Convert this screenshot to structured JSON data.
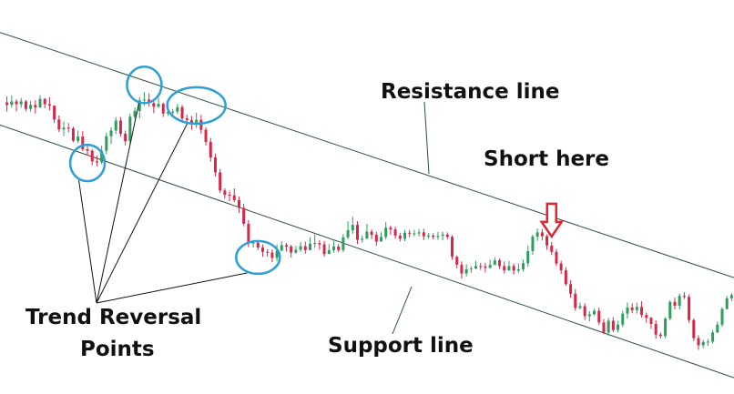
{
  "chart_data": {
    "type": "candlestick",
    "title": "",
    "xlabel": "",
    "ylabel": "",
    "ylim": [
      0,
      100
    ],
    "colors": {
      "up": "#2e9e5b",
      "down": "#d6274a",
      "channel": "#2f4f3f",
      "marker": "#2b9fd8",
      "arrow": "#e0262e"
    },
    "candles": [
      [
        80.1,
        79.4,
        81.8,
        77.5
      ],
      [
        79.4,
        80.4,
        82.1,
        78.7
      ],
      [
        80.4,
        79.6,
        81.0,
        77.6
      ],
      [
        79.6,
        80.4,
        81.4,
        78.6
      ],
      [
        80.4,
        78.3,
        80.8,
        77.6
      ],
      [
        78.3,
        79.4,
        80.5,
        77.5
      ],
      [
        79.4,
        78.7,
        80.7,
        77.0
      ],
      [
        78.7,
        81.1,
        82.1,
        78.6
      ],
      [
        81.1,
        79.6,
        81.3,
        78.5
      ],
      [
        79.6,
        79.2,
        81.6,
        77.9
      ],
      [
        79.2,
        75.3,
        79.2,
        74.3
      ],
      [
        75.3,
        72.5,
        76.4,
        71.8
      ],
      [
        72.5,
        73.0,
        74.7,
        70.6
      ],
      [
        73.0,
        72.8,
        74.3,
        71.7
      ],
      [
        72.8,
        69.3,
        73.3,
        68.9
      ],
      [
        69.3,
        70.5,
        72.2,
        68.6
      ],
      [
        70.5,
        66.9,
        72.0,
        66.4
      ],
      [
        66.9,
        66.5,
        67.9,
        65.1
      ],
      [
        66.5,
        63.5,
        66.9,
        62.4
      ],
      [
        63.5,
        63.2,
        65.2,
        62.1
      ],
      [
        63.2,
        66.5,
        67.9,
        62.7
      ],
      [
        66.5,
        70.6,
        71.6,
        65.5
      ],
      [
        70.6,
        72.2,
        73.1,
        68.4
      ],
      [
        72.2,
        75.0,
        76.0,
        71.2
      ],
      [
        75.0,
        71.3,
        76.0,
        70.5
      ],
      [
        71.3,
        69.2,
        72.2,
        68.0
      ],
      [
        69.2,
        76.1,
        76.9,
        68.2
      ],
      [
        76.1,
        77.7,
        78.7,
        75.5
      ],
      [
        77.7,
        80.7,
        81.6,
        75.6
      ],
      [
        80.7,
        80.9,
        83.0,
        79.2
      ],
      [
        80.9,
        79.9,
        82.7,
        78.9
      ],
      [
        79.9,
        78.9,
        80.4,
        77.1
      ],
      [
        78.9,
        79.7,
        81.4,
        78.6
      ],
      [
        79.7,
        77.0,
        80.1,
        76.0
      ],
      [
        77.0,
        77.4,
        78.7,
        76.4
      ],
      [
        77.4,
        77.5,
        78.3,
        76.2
      ],
      [
        77.5,
        78.8,
        79.7,
        76.8
      ],
      [
        78.8,
        75.6,
        79.4,
        74.6
      ],
      [
        75.6,
        75.1,
        76.7,
        74.0
      ],
      [
        75.1,
        74.0,
        76.3,
        72.4
      ],
      [
        74.0,
        75.2,
        77.2,
        72.9
      ],
      [
        75.2,
        72.4,
        76.6,
        71.3
      ],
      [
        72.4,
        69.0,
        73.1,
        68.0
      ],
      [
        69.0,
        64.6,
        70.1,
        63.4
      ],
      [
        64.6,
        60.4,
        65.7,
        59.3
      ],
      [
        60.4,
        55.3,
        61.4,
        54.6
      ],
      [
        55.3,
        54.1,
        55.9,
        53.0
      ],
      [
        54.1,
        53.9,
        55.2,
        52.3
      ],
      [
        53.9,
        52.6,
        55.9,
        52.0
      ],
      [
        52.6,
        50.4,
        53.6,
        49.0
      ],
      [
        50.4,
        45.9,
        51.6,
        45.2
      ],
      [
        45.9,
        40.5,
        47.0,
        39.3
      ],
      [
        40.5,
        40.6,
        41.4,
        39.2
      ],
      [
        40.6,
        39.2,
        41.2,
        38.5
      ],
      [
        39.2,
        38.0,
        40.1,
        36.6
      ],
      [
        38.0,
        37.8,
        38.8,
        36.6
      ],
      [
        37.8,
        36.3,
        38.7,
        35.1
      ],
      [
        36.3,
        38.3,
        40.1,
        35.4
      ],
      [
        38.3,
        39.9,
        41.0,
        38.5
      ],
      [
        39.9,
        39.5,
        40.5,
        38.1
      ],
      [
        39.5,
        37.8,
        40.0,
        36.4
      ],
      [
        37.8,
        38.6,
        39.7,
        37.5
      ],
      [
        38.6,
        39.6,
        40.8,
        38.0
      ],
      [
        39.6,
        38.5,
        40.9,
        37.5
      ],
      [
        38.5,
        40.3,
        42.1,
        39.2
      ],
      [
        40.3,
        40.5,
        42.9,
        39.1
      ],
      [
        40.5,
        40.1,
        41.3,
        38.6
      ],
      [
        40.1,
        37.4,
        41.1,
        36.6
      ],
      [
        37.4,
        38.5,
        40.2,
        37.7
      ],
      [
        38.5,
        39.5,
        41.1,
        37.8
      ],
      [
        39.5,
        38.5,
        40.2,
        37.9
      ],
      [
        38.5,
        42.1,
        43.0,
        37.9
      ],
      [
        42.1,
        44.1,
        46.6,
        41.5
      ],
      [
        44.1,
        45.6,
        47.9,
        43.1
      ],
      [
        45.6,
        41.4,
        46.6,
        40.2
      ],
      [
        41.4,
        41.7,
        42.6,
        40.6
      ],
      [
        41.7,
        43.7,
        45.9,
        41.9
      ],
      [
        43.7,
        42.8,
        44.3,
        41.6
      ],
      [
        42.8,
        40.9,
        43.7,
        39.7
      ],
      [
        40.9,
        42.2,
        43.5,
        41.4
      ],
      [
        42.2,
        44.8,
        46.4,
        41.5
      ],
      [
        44.8,
        44.3,
        45.4,
        42.8
      ],
      [
        44.3,
        42.6,
        45.1,
        41.7
      ],
      [
        42.6,
        41.7,
        43.4,
        40.9
      ],
      [
        41.7,
        43.4,
        44.2,
        41.0
      ],
      [
        43.4,
        43.2,
        44.2,
        42.1
      ],
      [
        43.2,
        43.2,
        44.2,
        42.4
      ],
      [
        43.2,
        43.5,
        44.4,
        42.3
      ],
      [
        43.5,
        42.4,
        44.5,
        41.3
      ],
      [
        42.4,
        42.6,
        43.3,
        41.7
      ],
      [
        42.6,
        42.2,
        43.2,
        41.5
      ],
      [
        42.2,
        42.5,
        43.6,
        41.4
      ],
      [
        42.5,
        42.9,
        43.7,
        41.3
      ],
      [
        42.9,
        42.2,
        43.5,
        41.5
      ],
      [
        42.2,
        36.6,
        42.7,
        35.8
      ],
      [
        36.6,
        34.4,
        37.0,
        33.3
      ],
      [
        34.4,
        31.9,
        35.3,
        30.5
      ],
      [
        31.9,
        33.1,
        34.5,
        31.1
      ],
      [
        33.1,
        33.3,
        34.0,
        32.1
      ],
      [
        33.3,
        34.0,
        35.5,
        33.1
      ],
      [
        34.0,
        33.9,
        34.9,
        32.9
      ],
      [
        33.9,
        33.5,
        34.9,
        32.2
      ],
      [
        33.5,
        34.3,
        35.8,
        33.3
      ],
      [
        34.3,
        35.6,
        36.5,
        34.6
      ],
      [
        35.6,
        34.0,
        36.1,
        33.2
      ],
      [
        34.0,
        32.8,
        35.3,
        31.9
      ],
      [
        32.8,
        34.0,
        35.4,
        32.7
      ],
      [
        34.0,
        32.7,
        34.7,
        31.6
      ],
      [
        32.7,
        33.1,
        34.8,
        32.0
      ],
      [
        33.1,
        34.8,
        35.8,
        32.4
      ],
      [
        34.8,
        38.2,
        39.8,
        33.8
      ],
      [
        38.2,
        42.3,
        42.8,
        37.2
      ],
      [
        42.3,
        43.5,
        44.6,
        41.1
      ],
      [
        43.5,
        42.4,
        44.4,
        41.2
      ],
      [
        42.4,
        39.8,
        42.9,
        38.6
      ],
      [
        39.8,
        38.0,
        40.8,
        37.1
      ],
      [
        38.0,
        34.7,
        38.8,
        34.0
      ],
      [
        34.7,
        32.8,
        35.5,
        31.8
      ],
      [
        32.8,
        28.9,
        33.7,
        28.4
      ],
      [
        28.9,
        26.2,
        30.0,
        25.1
      ],
      [
        26.2,
        22.2,
        27.5,
        21.4
      ],
      [
        22.2,
        22.7,
        23.7,
        21.8
      ],
      [
        22.7,
        19.9,
        23.5,
        18.8
      ],
      [
        19.9,
        20.4,
        21.3,
        18.4
      ],
      [
        20.4,
        21.4,
        22.0,
        20.1
      ],
      [
        21.4,
        18.1,
        22.3,
        17.4
      ],
      [
        18.1,
        15.3,
        19.1,
        14.8
      ],
      [
        15.3,
        18.6,
        19.4,
        14.4
      ],
      [
        18.6,
        16.0,
        19.6,
        15.4
      ],
      [
        16.0,
        17.5,
        18.6,
        15.3
      ],
      [
        17.5,
        20.6,
        21.4,
        16.8
      ],
      [
        20.6,
        22.3,
        23.7,
        19.2
      ],
      [
        22.3,
        21.6,
        23.5,
        20.7
      ],
      [
        21.6,
        22.5,
        23.7,
        20.6
      ],
      [
        22.5,
        20.2,
        24.1,
        19.5
      ],
      [
        20.2,
        19.4,
        20.9,
        18.0
      ],
      [
        19.4,
        17.7,
        19.7,
        16.3
      ],
      [
        17.7,
        14.7,
        18.7,
        13.5
      ],
      [
        14.7,
        14.3,
        15.3,
        13.6
      ],
      [
        14.3,
        19.2,
        19.6,
        13.7
      ],
      [
        19.2,
        23.9,
        24.4,
        18.7
      ],
      [
        23.9,
        22.8,
        25.1,
        21.8
      ],
      [
        22.8,
        25.6,
        26.3,
        21.8
      ],
      [
        25.6,
        25.3,
        26.6,
        24.7
      ],
      [
        25.3,
        18.8,
        26.0,
        18.0
      ],
      [
        18.8,
        13.7,
        19.2,
        12.9
      ],
      [
        13.7,
        11.7,
        14.5,
        10.4
      ],
      [
        11.7,
        12.6,
        13.2,
        10.9
      ],
      [
        12.6,
        12.7,
        13.5,
        11.5
      ],
      [
        12.7,
        15.3,
        16.0,
        12.2
      ],
      [
        15.3,
        17.5,
        18.4,
        15.1
      ],
      [
        17.5,
        21.9,
        22.4,
        16.9
      ],
      [
        21.9,
        24.9,
        25.6,
        21.7
      ],
      [
        24.9,
        25.8,
        26.4,
        24.1
      ]
    ],
    "resistance_line": [
      [
        0,
        99.2
      ],
      [
        154,
        30.5
      ]
    ],
    "support_line": [
      [
        0,
        73.1
      ],
      [
        154,
        2.3
      ]
    ],
    "annotations": {
      "resistance": "Resistance line",
      "support": "Support line",
      "short": "Short here",
      "reversal_line1": "Trend Reversal",
      "reversal_line2": "Points"
    },
    "reversal_points": [
      17,
      29,
      40,
      53
    ],
    "short_at": 115
  }
}
